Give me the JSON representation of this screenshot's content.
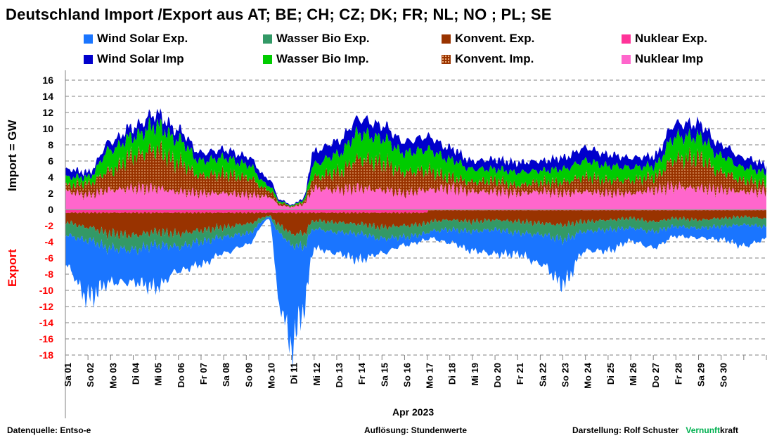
{
  "chart_data": {
    "type": "area",
    "title": "Deutschland Import /Export  aus AT;  BE;  CH;  CZ;  DK;  FR;  NL;  NO ;  PL;  SE",
    "ylabel_import": "Import     = GW",
    "ylabel_export": "Export",
    "month_label": "Apr 2023",
    "ylim": [
      -18,
      16
    ],
    "yticks": [
      16,
      14,
      12,
      10,
      8,
      6,
      4,
      2,
      0,
      -2,
      -4,
      -6,
      -8,
      -10,
      -12,
      -14,
      -16,
      -18
    ],
    "grid": true,
    "legend_position": "top",
    "day_labels": [
      "Sa 01",
      "So 02",
      "Mo 03",
      "Di 04",
      "Mi 05",
      "Do 06",
      "Fr 07",
      "Sa 08",
      "So 09",
      "Mo 10",
      "Di 11",
      "Mi 12",
      "Do 13",
      "Fr 14",
      "Sa 15",
      "So 16",
      "Mo 17",
      "Di 18",
      "Mi 19",
      "Do 20",
      "Fr 21",
      "Sa 22",
      "So 23",
      "Mo 24",
      "Di 25",
      "Mi 26",
      "Do 27",
      "Fr 28",
      "Sa 29",
      "So 30"
    ],
    "x_unit": "day index (0-30)",
    "import_series": [
      {
        "name": "Nuklear Imp",
        "color": "#ff66cc",
        "x": [
          0,
          1,
          2,
          3,
          4,
          5,
          6,
          7,
          8,
          9,
          9.5,
          10,
          10.5,
          11,
          12,
          13,
          14,
          15,
          16,
          17,
          18,
          19,
          20,
          21,
          22,
          23,
          24,
          25,
          26,
          27,
          28,
          29,
          30,
          31
        ],
        "values": [
          2.2,
          1.8,
          2.4,
          2.6,
          2.6,
          2.2,
          2.0,
          2.0,
          1.8,
          1.6,
          0.5,
          0.3,
          0.6,
          2.6,
          2.4,
          2.6,
          2.4,
          2.0,
          2.4,
          2.6,
          2.2,
          2.2,
          2.0,
          2.2,
          2.0,
          2.2,
          2.0,
          2.0,
          2.4,
          2.8,
          2.6,
          2.4,
          2.2,
          2.2
        ]
      },
      {
        "name": "Konvent. Imp.",
        "color": "#993300",
        "x": [
          0,
          1,
          2,
          3,
          4,
          5,
          6,
          7,
          8,
          9,
          9.5,
          10,
          10.5,
          11,
          12,
          13,
          14,
          15,
          16,
          17,
          18,
          19,
          20,
          21,
          22,
          23,
          24,
          25,
          26,
          27,
          28,
          29,
          30,
          31
        ],
        "values": [
          0.8,
          1.4,
          2.4,
          4.0,
          4.8,
          3.6,
          2.2,
          2.4,
          2.2,
          0.8,
          0.3,
          0.1,
          0.3,
          1.4,
          2.2,
          3.6,
          3.4,
          2.6,
          2.4,
          1.4,
          1.2,
          1.4,
          1.0,
          1.2,
          1.4,
          1.8,
          1.6,
          1.6,
          1.6,
          3.4,
          3.8,
          2.2,
          1.4,
          1.0
        ]
      },
      {
        "name": "Wasser Bio Imp.",
        "color": "#00cc00",
        "x": [
          0,
          1,
          2,
          3,
          4,
          5,
          6,
          7,
          8,
          9,
          9.5,
          10,
          10.5,
          11,
          12,
          13,
          14,
          15,
          16,
          17,
          18,
          19,
          20,
          21,
          22,
          23,
          24,
          25,
          26,
          27,
          28,
          29,
          30,
          31
        ],
        "values": [
          1.0,
          0.8,
          2.6,
          2.4,
          3.0,
          2.8,
          1.8,
          2.0,
          1.6,
          0.6,
          0.2,
          0.1,
          0.2,
          1.6,
          2.2,
          3.2,
          3.0,
          2.4,
          2.6,
          2.2,
          1.6,
          1.4,
          1.6,
          1.4,
          1.6,
          2.0,
          1.8,
          1.6,
          1.4,
          2.8,
          2.6,
          2.0,
          1.6,
          1.4
        ]
      },
      {
        "name": "Wind Solar Imp",
        "color": "#0000cc",
        "x": [
          0,
          1,
          2,
          3,
          4,
          5,
          6,
          7,
          8,
          9,
          9.5,
          10,
          10.5,
          11,
          12,
          13,
          14,
          15,
          16,
          17,
          18,
          19,
          20,
          21,
          22,
          23,
          24,
          25,
          26,
          27,
          28,
          29,
          30,
          31
        ],
        "values": [
          1.0,
          0.6,
          1.0,
          1.2,
          1.4,
          1.2,
          1.0,
          1.0,
          1.0,
          0.8,
          0.2,
          0.1,
          0.2,
          1.6,
          1.6,
          1.8,
          1.6,
          1.4,
          1.6,
          1.4,
          1.0,
          1.2,
          1.2,
          1.2,
          1.4,
          1.6,
          1.4,
          1.2,
          1.2,
          1.6,
          1.6,
          1.4,
          1.2,
          1.0
        ]
      }
    ],
    "export_series": [
      {
        "name": "Nuklear Exp.",
        "color": "#ff3399",
        "x": [
          0,
          16,
          16.01,
          31
        ],
        "values": [
          -0.4,
          -0.4,
          -0.1,
          -0.1
        ]
      },
      {
        "name": "Konvent. Exp.",
        "color": "#993300",
        "x": [
          0,
          1,
          2,
          3,
          4,
          5,
          6,
          7,
          8,
          9,
          9.5,
          10,
          10.5,
          11,
          12,
          13,
          14,
          15,
          16,
          17,
          18,
          19,
          20,
          21,
          22,
          23,
          24,
          25,
          26,
          27,
          28,
          29,
          30,
          31
        ],
        "values": [
          -1.2,
          -1.8,
          -2.6,
          -2.8,
          -2.4,
          -2.6,
          -2.2,
          -1.8,
          -1.4,
          -0.4,
          -1.6,
          -2.6,
          -2.6,
          -1.0,
          -1.2,
          -1.4,
          -1.8,
          -1.6,
          -1.4,
          -1.2,
          -1.4,
          -1.2,
          -1.4,
          -1.6,
          -1.8,
          -1.4,
          -1.2,
          -1.0,
          -1.4,
          -1.0,
          -1.2,
          -1.0,
          -0.8,
          -1.0
        ]
      },
      {
        "name": "Wasser Bio Exp.",
        "color": "#339966",
        "x": [
          0,
          1,
          2,
          3,
          4,
          5,
          6,
          7,
          8,
          9,
          9.5,
          10,
          10.5,
          11,
          12,
          13,
          14,
          15,
          16,
          17,
          18,
          19,
          20,
          21,
          22,
          23,
          24,
          25,
          26,
          27,
          28,
          29,
          30,
          31
        ],
        "values": [
          -1.6,
          -1.6,
          -1.8,
          -1.8,
          -1.6,
          -1.6,
          -1.4,
          -1.2,
          -1.2,
          -0.2,
          -1.0,
          -1.4,
          -1.6,
          -1.0,
          -1.2,
          -1.2,
          -1.4,
          -1.4,
          -1.2,
          -1.2,
          -1.2,
          -1.2,
          -1.4,
          -1.4,
          -1.8,
          -1.2,
          -1.2,
          -1.2,
          -1.2,
          -1.0,
          -1.0,
          -1.0,
          -1.0,
          -1.0
        ]
      },
      {
        "name": "Wind Solar Exp.",
        "color": "#1a75ff",
        "x": [
          0,
          1,
          2,
          3,
          4,
          5,
          6,
          7,
          8,
          9,
          9.5,
          10,
          10.5,
          11,
          12,
          13,
          14,
          15,
          16,
          17,
          18,
          19,
          20,
          21,
          22,
          23,
          24,
          25,
          26,
          27,
          28,
          29,
          30,
          31
        ],
        "values": [
          -3.8,
          -7.0,
          -4.2,
          -4.0,
          -5.2,
          -3.0,
          -2.8,
          -2.0,
          -1.4,
          -0.2,
          -9.0,
          -12.4,
          -8.0,
          -2.4,
          -2.6,
          -3.2,
          -1.8,
          -1.0,
          -0.8,
          -1.6,
          -2.4,
          -3.0,
          -2.6,
          -3.6,
          -5.4,
          -2.4,
          -2.6,
          -1.6,
          -2.0,
          -1.2,
          -1.2,
          -1.6,
          -2.6,
          -1.6
        ]
      }
    ]
  },
  "legend": [
    {
      "label": "Wind Solar Exp.",
      "color": "#1a75ff",
      "pattern": "solid"
    },
    {
      "label": "Wasser Bio Exp.",
      "color": "#339966",
      "pattern": "solid"
    },
    {
      "label": "Konvent. Exp.",
      "color": "#993300",
      "pattern": "solid"
    },
    {
      "label": "Nuklear Exp.",
      "color": "#ff3399",
      "pattern": "solid"
    },
    {
      "label": "Wind Solar Imp",
      "color": "#0000cc",
      "pattern": "solid"
    },
    {
      "label": "Wasser Bio Imp.",
      "color": "#00cc00",
      "pattern": "solid"
    },
    {
      "label": "Konvent. Imp.",
      "color": "#993300",
      "pattern": "dotted"
    },
    {
      "label": "Nuklear Imp",
      "color": "#ff66cc",
      "pattern": "solid"
    }
  ],
  "footer": {
    "source": "Datenquelle: Entso-e",
    "resolution": "Auflösung: Stundenwerte",
    "credit": "Darstellung:  Rolf Schuster",
    "brand_green": "Vernunft",
    "brand_black": "kraft",
    "brand_color": "#00b050"
  },
  "colors": {
    "export_label": "#ff0000",
    "grid": "#808080",
    "axis": "#808080"
  }
}
